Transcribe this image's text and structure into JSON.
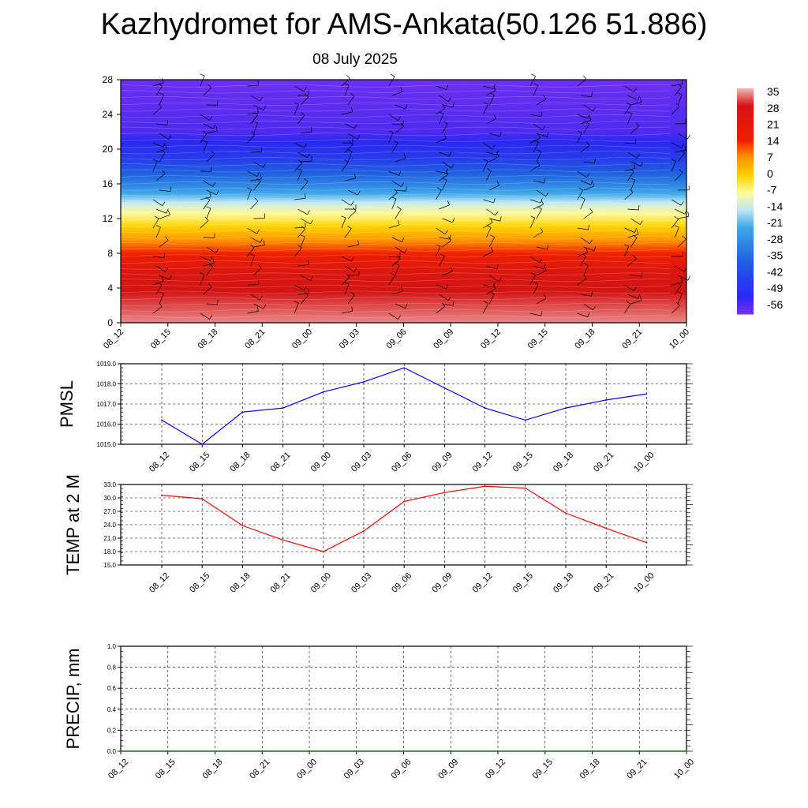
{
  "header": {
    "title": "Kazhydromet for AMS-Ankata(50.126 51.886)",
    "subtitle": "08 July 2025"
  },
  "chart_data": [
    {
      "type": "heatmap",
      "title": "",
      "xlabel": "",
      "ylabel": "",
      "x_tick_labels": [
        "08_12",
        "08_15",
        "08_18",
        "08_21",
        "09_00",
        "09_03",
        "09_06",
        "09_09",
        "09_12",
        "09_15",
        "09_18",
        "09_21",
        "10_00"
      ],
      "y_ticks": [
        0,
        4,
        8,
        12,
        16,
        20,
        24,
        28
      ],
      "ylim": [
        0,
        28
      ],
      "colorbar": {
        "labels": [
          "35",
          "28",
          "21",
          "14",
          "7",
          "0",
          "-7",
          "-14",
          "-21",
          "-28",
          "-35",
          "-42",
          "-49",
          "-56"
        ],
        "stops": [
          {
            "value": 35,
            "color": "#f4b6b6"
          },
          {
            "value": 28,
            "color": "#d41414"
          },
          {
            "value": 14,
            "color": "#f01e00"
          },
          {
            "value": 7,
            "color": "#ff9600"
          },
          {
            "value": 0,
            "color": "#ffd200"
          },
          {
            "value": -7,
            "color": "#fffa9b"
          },
          {
            "value": -14,
            "color": "#bfe7f5"
          },
          {
            "value": -21,
            "color": "#3fa8e8"
          },
          {
            "value": -35,
            "color": "#1e60e0"
          },
          {
            "value": -49,
            "color": "#2a28f2"
          },
          {
            "value": -56,
            "color": "#7a2ff2"
          }
        ]
      },
      "temperature_profile": [
        {
          "height": 0,
          "value": 33
        },
        {
          "height": 3,
          "value": 29
        },
        {
          "height": 6,
          "value": 24
        },
        {
          "height": 8,
          "value": 14
        },
        {
          "height": 10,
          "value": 5
        },
        {
          "height": 13.5,
          "value": -11
        },
        {
          "height": 14.5,
          "value": -18
        },
        {
          "height": 16,
          "value": -28
        },
        {
          "height": 19,
          "value": -44
        },
        {
          "height": 22,
          "value": -52
        },
        {
          "height": 28,
          "value": -55
        }
      ],
      "wind_barbs": "yes"
    },
    {
      "type": "line",
      "ylabel": "PMSL",
      "x": [
        "08_12",
        "08_15",
        "08_18",
        "08_21",
        "09_00",
        "09_03",
        "09_06",
        "09_09",
        "09_12",
        "09_15",
        "09_18",
        "09_21",
        "10_00"
      ],
      "y_tick_labels": [
        "1015.0",
        "1016.0",
        "1017.0",
        "1018.0",
        "1019.0"
      ],
      "ylim": [
        1015,
        1019
      ],
      "series": [
        {
          "color": "#0000ff",
          "values": [
            1016.2,
            1015.0,
            1016.6,
            1016.8,
            1017.6,
            1018.1,
            1018.8,
            1017.8,
            1016.8,
            1016.2,
            1016.8,
            1017.2,
            1017.5
          ]
        }
      ]
    },
    {
      "type": "line",
      "ylabel": "TEMP at 2 M",
      "x": [
        "08_12",
        "08_15",
        "08_18",
        "08_21",
        "09_00",
        "09_03",
        "09_06",
        "09_09",
        "09_12",
        "09_15",
        "09_18",
        "09_21",
        "10_00"
      ],
      "y_tick_labels": [
        "15.0",
        "18.0",
        "21.0",
        "24.0",
        "27.0",
        "30.0",
        "33.0"
      ],
      "ylim": [
        15,
        33
      ],
      "series": [
        {
          "color": "#ff0000",
          "values": [
            30.6,
            29.8,
            23.8,
            20.6,
            18.0,
            22.6,
            29.2,
            31.2,
            32.6,
            32.2,
            26.6,
            23.2,
            20.0
          ]
        }
      ]
    },
    {
      "type": "line",
      "ylabel": "PRECIP, mm",
      "x_tick_labels": [
        "08_12",
        "08_15",
        "08_18",
        "08_21",
        "09_00",
        "09_03",
        "09_06",
        "09_09",
        "09_12",
        "09_15",
        "09_18",
        "09_21",
        "10_00"
      ],
      "y_tick_labels": [
        "0.0",
        "0.2",
        "0.4",
        "0.6",
        "0.8",
        "1.0"
      ],
      "ylim": [
        0,
        1
      ],
      "series": [
        {
          "color": "#007000",
          "values": [
            0,
            0,
            0,
            0,
            0,
            0,
            0,
            0,
            0,
            0,
            0,
            0,
            0
          ]
        }
      ]
    }
  ]
}
